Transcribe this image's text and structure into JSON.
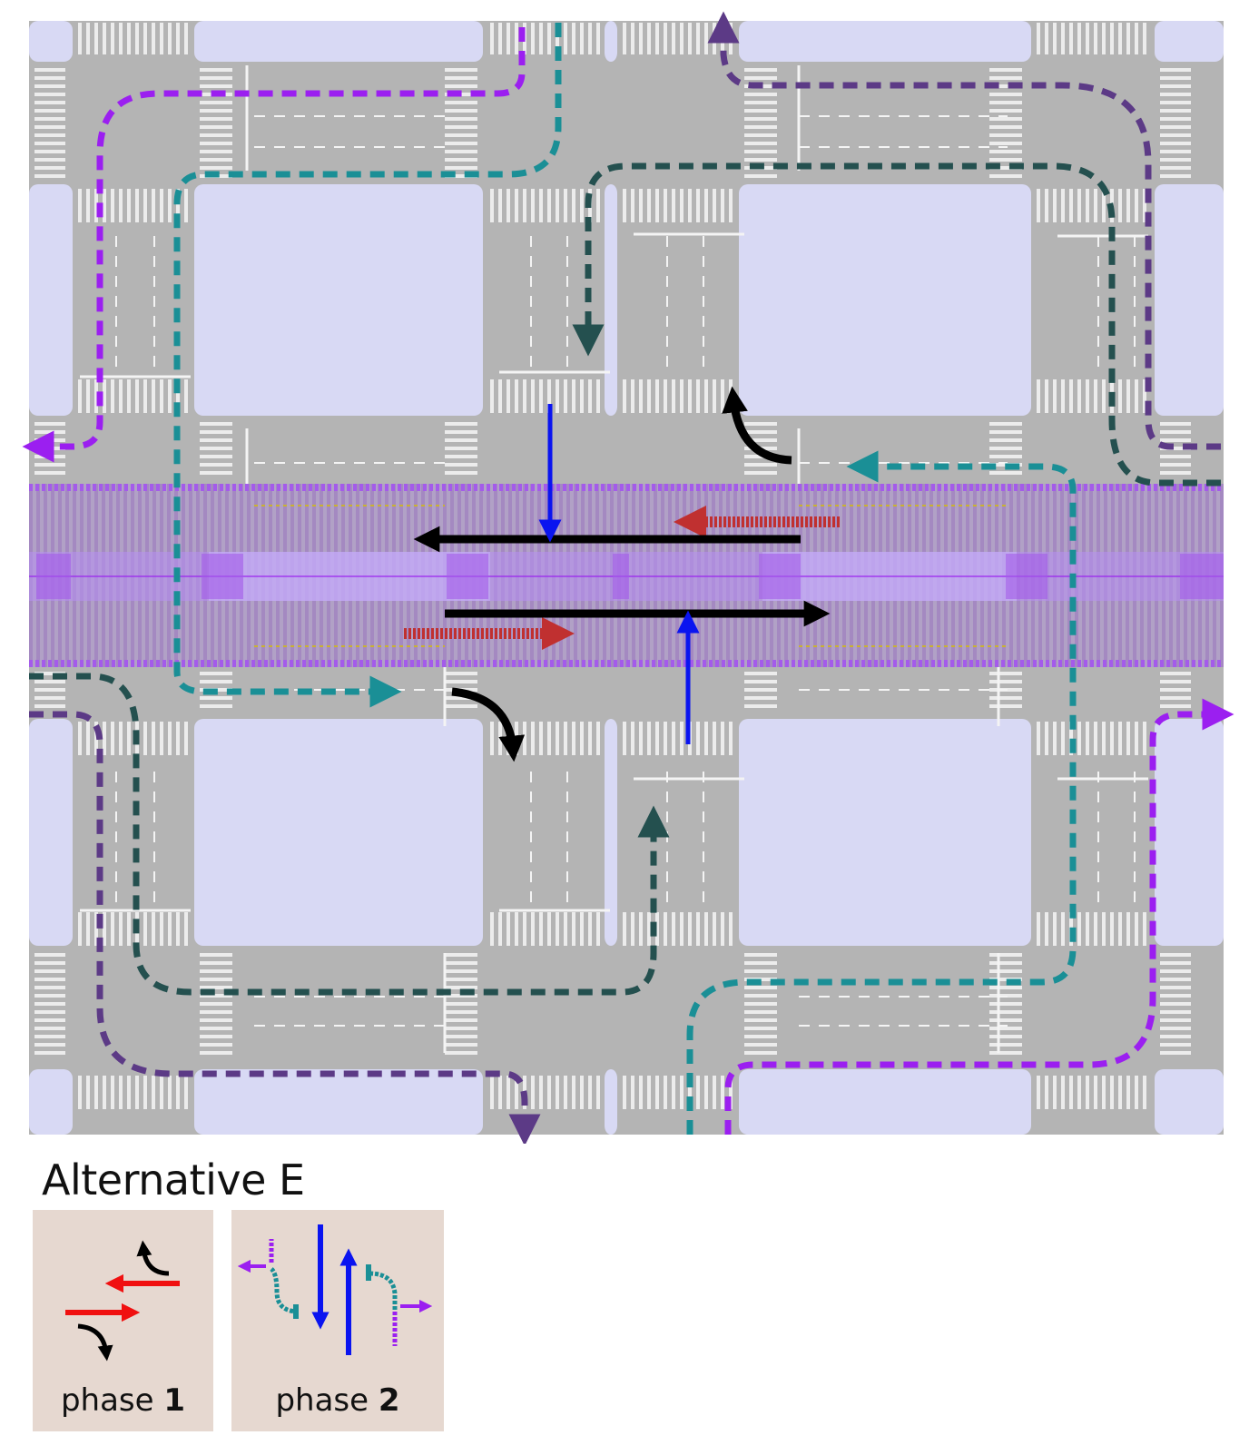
{
  "title": "Alternative E",
  "colors": {
    "block": "#d8d9f4",
    "road": "#b4b4b4",
    "crosswalk": "#ececec",
    "busway": "#a45bea",
    "through_phase1": "#000000",
    "left_turn_transit": "#c03030",
    "cross_street": "#0a14f0",
    "teal_loop": "#1a8f96",
    "dark_teal_loop": "#24504f",
    "purple_loop": "#9b1ff0",
    "dark_purple_loop": "#5c3a86",
    "panel_bg": "#e6d8d0"
  },
  "phases": [
    {
      "prefix": "phase ",
      "number": "1"
    },
    {
      "prefix": "phase ",
      "number": "2"
    }
  ]
}
